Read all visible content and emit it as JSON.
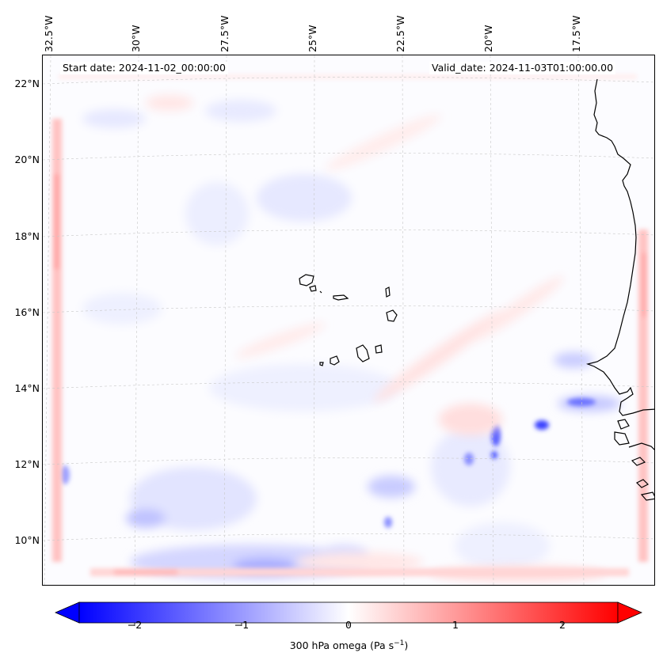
{
  "header": {
    "start_date": "Start date: 2024-11-02_00:00:00",
    "valid_date": "Valid_date: 2024-11-03T01:00:00.00"
  },
  "axes": {
    "lon_labels": [
      "32.5°W",
      "30°W",
      "27.5°W",
      "25°W",
      "22.5°W",
      "20°W",
      "17.5°W"
    ],
    "lat_labels": [
      "22°N",
      "20°N",
      "18°N",
      "16°N",
      "14°N",
      "12°N",
      "10°N"
    ]
  },
  "colorbar": {
    "ticks": [
      "−2",
      "−1",
      "0",
      "1",
      "2"
    ],
    "title_prefix": "300 hPa omega (Pa s",
    "title_sup": "−1",
    "title_suffix": ")",
    "colors": {
      "min": "#0000ff",
      "mid": "#ffffff",
      "max": "#ff0000"
    }
  },
  "map": {
    "features": [
      "coastline-west-africa",
      "cape-verde-islands",
      "omega-field"
    ]
  }
}
